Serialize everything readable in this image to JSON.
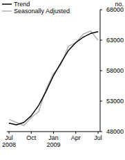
{
  "chart_data": {
    "type": "line",
    "y_label": "no.",
    "categories": [
      "Jul 2008",
      null,
      null,
      "Oct",
      null,
      null,
      "Jan 2009",
      null,
      null,
      "Apr",
      null,
      null,
      "Jul"
    ],
    "series": [
      {
        "name": "Trend",
        "color": "#000000",
        "values": [
          49400,
          49100,
          49500,
          50600,
          52300,
          54600,
          57200,
          59300,
          61300,
          62600,
          63500,
          64100,
          64400
        ]
      },
      {
        "name": "Seasonally Adjusted",
        "color": "#b0b0b0",
        "values": [
          50000,
          49500,
          49000,
          50300,
          51300,
          55000,
          57500,
          59000,
          62000,
          62600,
          64000,
          64500,
          63000
        ]
      }
    ],
    "ylim": [
      48000,
      68000
    ],
    "yticks": [
      48000,
      53000,
      58000,
      63000,
      68000
    ],
    "grid": false,
    "legend": "top-left"
  }
}
